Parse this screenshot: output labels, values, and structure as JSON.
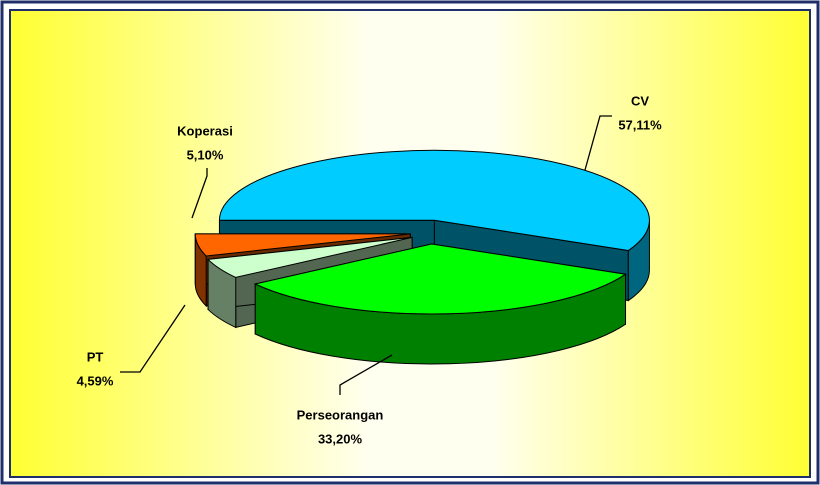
{
  "chart_data": {
    "type": "pie3d",
    "categories": [
      "CV",
      "Perseorangan",
      "PT",
      "Koperasi"
    ],
    "values": [
      57.11,
      33.2,
      4.59,
      5.1
    ],
    "value_labels": [
      "57,11%",
      "33,20%",
      "4,59%",
      "5,10%"
    ],
    "colors": [
      "#00ccff",
      "#00ff00",
      "#ccffcc",
      "#ff6600"
    ]
  }
}
